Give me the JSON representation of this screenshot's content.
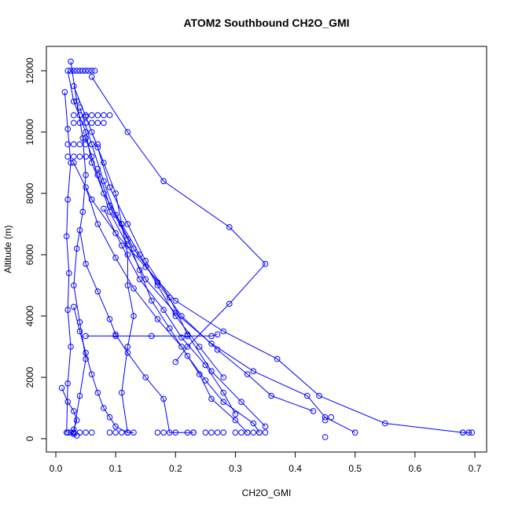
{
  "chart_data": {
    "type": "scatter",
    "title": "ATOM2 Southbound CH2O_GMI",
    "xlabel": "CH2O_GMI",
    "ylabel": "Altitude (m)",
    "xlim": [
      0.0,
      0.7
    ],
    "ylim": [
      0,
      12000
    ],
    "x_ticks": [
      "0.0",
      "0.1",
      "0.2",
      "0.3",
      "0.4",
      "0.5",
      "0.6",
      "0.7"
    ],
    "y_ticks": [
      "0",
      "2000",
      "4000",
      "6000",
      "8000",
      "10000",
      "12000"
    ],
    "grid": false,
    "legend": "none",
    "series_color": "#0000ff",
    "series": [
      {
        "x": [
          0.02,
          0.03,
          0.05,
          0.06,
          0.08,
          0.11,
          0.14,
          0.17,
          0.2,
          0.24,
          0.28
        ],
        "y": [
          12000,
          11000,
          10000,
          9000,
          8000,
          7000,
          6000,
          5000,
          4000,
          3000,
          2000
        ]
      },
      {
        "x": [
          0.03,
          0.05,
          0.07,
          0.09,
          0.12,
          0.15,
          0.19,
          0.22,
          0.26,
          0.31,
          0.35
        ],
        "y": [
          11500,
          10500,
          9500,
          8200,
          7000,
          5800,
          4600,
          3400,
          2200,
          1200,
          400
        ]
      },
      {
        "x": [
          0.06,
          0.12,
          0.18,
          0.29,
          0.35,
          0.29,
          0.22,
          0.2
        ],
        "y": [
          11800,
          10000,
          8400,
          6900,
          5700,
          4400,
          3000,
          2500
        ]
      },
      {
        "x": [
          0.04,
          0.06,
          0.08,
          0.1,
          0.13,
          0.17,
          0.21,
          0.27,
          0.32,
          0.36,
          0.43
        ],
        "y": [
          10800,
          9600,
          8400,
          7300,
          6200,
          5100,
          4000,
          2900,
          2100,
          1400,
          900
        ]
      },
      {
        "x": [
          0.05,
          0.07,
          0.09,
          0.12,
          0.15,
          0.2,
          0.26,
          0.33,
          0.42,
          0.45,
          0.5
        ],
        "y": [
          9800,
          8600,
          7400,
          6300,
          5200,
          4100,
          3100,
          2200,
          1400,
          700,
          200
        ]
      },
      {
        "x": [
          0.03,
          0.06,
          0.1,
          0.15,
          0.2,
          0.28,
          0.37,
          0.44,
          0.55,
          0.68,
          0.695
        ],
        "y": [
          9000,
          7800,
          6700,
          5600,
          4500,
          3500,
          2600,
          1400,
          500,
          200,
          200
        ]
      },
      {
        "x": [
          0.025,
          0.035,
          0.045,
          0.05,
          0.045,
          0.035,
          0.03,
          0.04,
          0.05,
          0.04,
          0.03
        ],
        "y": [
          12300,
          11000,
          9800,
          8600,
          7400,
          6200,
          5000,
          3800,
          2600,
          1400,
          200
        ]
      },
      {
        "x": [
          0.015,
          0.02,
          0.025,
          0.02,
          0.018,
          0.022,
          0.02,
          0.025,
          0.02,
          0.018
        ],
        "y": [
          11300,
          10100,
          9000,
          7800,
          6600,
          5400,
          4200,
          3000,
          1800,
          200
        ]
      },
      {
        "x": [
          0.06,
          0.08,
          0.1,
          0.11,
          0.12,
          0.12,
          0.13,
          0.12,
          0.11,
          0.12
        ],
        "y": [
          10000,
          9000,
          8000,
          7000,
          6000,
          5000,
          4000,
          3000,
          1500,
          200
        ]
      },
      {
        "x": [
          0.07,
          0.09,
          0.12,
          0.14,
          0.16,
          0.19,
          0.22,
          0.25,
          0.28,
          0.33,
          0.34
        ],
        "y": [
          8800,
          7600,
          6500,
          5500,
          4500,
          3600,
          2700,
          1900,
          1200,
          500,
          200
        ]
      },
      {
        "x": [
          0.05,
          0.07,
          0.1,
          0.13,
          0.17,
          0.21,
          0.24,
          0.26,
          0.3,
          0.32
        ],
        "y": [
          8200,
          7000,
          5900,
          4900,
          3900,
          3000,
          2100,
          1300,
          600,
          200
        ]
      },
      {
        "x": [
          0.08,
          0.11,
          0.14,
          0.18,
          0.21,
          0.25,
          0.28,
          0.3
        ],
        "y": [
          7500,
          6300,
          5200,
          4200,
          3300,
          2400,
          1500,
          800
        ]
      },
      {
        "x": [
          0.04,
          0.05,
          0.07,
          0.09,
          0.1,
          0.12,
          0.15,
          0.18,
          0.19,
          0.23
        ],
        "y": [
          6800,
          5700,
          4800,
          3900,
          3400,
          2800,
          2000,
          1300,
          200,
          200
        ]
      },
      {
        "x": [
          0.05,
          0.1,
          0.16,
          0.22,
          0.26,
          0.27
        ],
        "y": [
          3350,
          3350,
          3350,
          3350,
          3350,
          3400
        ]
      },
      {
        "x": [
          0.03,
          0.04,
          0.05,
          0.06,
          0.07,
          0.08,
          0.09,
          0.1,
          0.12,
          0.13
        ],
        "y": [
          4300,
          3500,
          2800,
          2100,
          1500,
          1000,
          700,
          400,
          200,
          200
        ]
      },
      {
        "x": [
          0.01,
          0.02,
          0.03,
          0.035,
          0.03,
          0.025,
          0.03,
          0.035
        ],
        "y": [
          1650,
          1200,
          900,
          600,
          300,
          200,
          150,
          100
        ]
      }
    ],
    "clusters": [
      {
        "x": [
          0.025,
          0.03,
          0.035,
          0.04,
          0.045,
          0.05,
          0.055,
          0.06,
          0.065
        ],
        "y": [
          12000,
          12000,
          12000,
          12000,
          12000,
          12000,
          12000,
          12000,
          12000
        ]
      },
      {
        "x": [
          0.03,
          0.04,
          0.05,
          0.06,
          0.07,
          0.08,
          0.09
        ],
        "y": [
          10550,
          10550,
          10550,
          10550,
          10550,
          10550,
          10550
        ]
      },
      {
        "x": [
          0.03,
          0.04,
          0.05,
          0.06,
          0.07,
          0.08
        ],
        "y": [
          10300,
          10300,
          10300,
          10300,
          10300,
          10300
        ]
      },
      {
        "x": [
          0.02,
          0.03,
          0.04,
          0.05,
          0.06,
          0.07
        ],
        "y": [
          9600,
          9600,
          9600,
          9600,
          9600,
          9600
        ]
      },
      {
        "x": [
          0.02,
          0.03,
          0.04,
          0.05,
          0.06
        ],
        "y": [
          9200,
          9200,
          9200,
          9200,
          9200
        ]
      },
      {
        "x": [
          0.17,
          0.18,
          0.2,
          0.22,
          0.23,
          0.25,
          0.26,
          0.27,
          0.28,
          0.3,
          0.31,
          0.32,
          0.33,
          0.34,
          0.35
        ],
        "y": [
          200,
          200,
          200,
          200,
          200,
          200,
          200,
          200,
          200,
          200,
          200,
          200,
          200,
          200,
          200
        ]
      },
      {
        "x": [
          0.02,
          0.03,
          0.04,
          0.05,
          0.06,
          0.09,
          0.1,
          0.11,
          0.12
        ],
        "y": [
          200,
          200,
          200,
          200,
          200,
          200,
          200,
          200,
          200
        ]
      },
      {
        "x": [
          0.45,
          0.45,
          0.46,
          0.68,
          0.69
        ],
        "y": [
          600,
          50,
          700,
          200,
          200
        ]
      }
    ]
  }
}
